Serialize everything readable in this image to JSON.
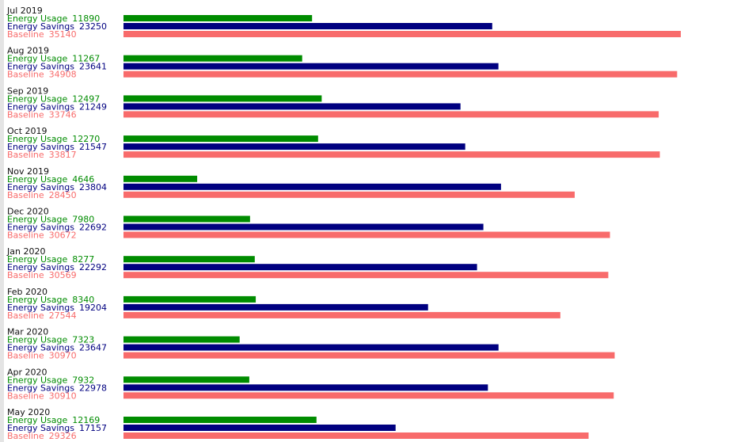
{
  "chart_data": {
    "type": "bar",
    "orientation": "horizontal",
    "categories": [
      "Jul 2019",
      "Aug 2019",
      "Sep 2019",
      "Oct 2019",
      "Nov 2019",
      "Dec 2020",
      "Jan 2020",
      "Feb 2020",
      "Mar 2020",
      "Apr 2020",
      "May 2020"
    ],
    "series": [
      {
        "name": "Energy Usage",
        "color": "#008c00",
        "values": [
          11890,
          11267,
          12497,
          12270,
          4646,
          7980,
          8277,
          8340,
          7323,
          7932,
          12169
        ]
      },
      {
        "name": "Energy Savings",
        "color": "#000080",
        "values": [
          23250,
          23641,
          21249,
          21547,
          23804,
          22692,
          22292,
          19204,
          23647,
          22978,
          17157
        ]
      },
      {
        "name": "Baseline",
        "color": "#f86b6b",
        "values": [
          35140,
          34908,
          33746,
          33817,
          28450,
          30672,
          30569,
          27544,
          30970,
          30910,
          29326
        ]
      }
    ]
  }
}
